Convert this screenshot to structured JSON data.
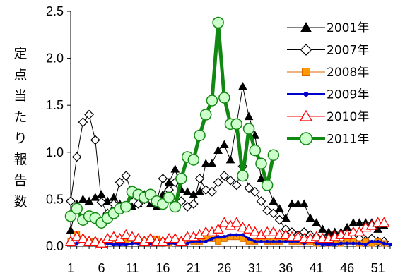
{
  "chart_data": {
    "type": "line",
    "title": "",
    "xlabel": "",
    "ylabel": "定点当たり報告数",
    "xlim": [
      1,
      53
    ],
    "ylim": [
      0,
      2.5
    ],
    "xticks": [
      1,
      6,
      11,
      16,
      21,
      26,
      31,
      36,
      41,
      46,
      51
    ],
    "yticks": [
      0,
      0.5,
      1,
      1.5,
      2,
      2.5
    ],
    "ytick_labels": [
      "0.0",
      "0.5",
      "1.0",
      "1.5",
      "2.0",
      "2.5"
    ],
    "grid": false,
    "legend_position": "top-right",
    "series": [
      {
        "name": "2001年",
        "color": "#000000",
        "marker": "triangle-filled",
        "line_width": 1,
        "values": [
          0.17,
          0.45,
          0.5,
          0.48,
          0.52,
          0.55,
          0.48,
          0.52,
          0.45,
          0.42,
          0.42,
          0.45,
          0.55,
          0.45,
          0.42,
          0.55,
          0.68,
          0.82,
          0.6,
          0.58,
          0.55,
          0.58,
          0.88,
          0.88,
          1.02,
          1.08,
          0.92,
          1.3,
          1.7,
          1.38,
          1.18,
          0.72,
          0.65,
          0.48,
          0.4,
          0.3,
          0.45,
          0.45,
          0.45,
          0.3,
          0.25,
          0.18,
          0.15,
          0.15,
          0.15,
          0.2,
          0.25,
          0.25,
          0.25,
          0.25,
          0.18,
          0.22,
          null
        ]
      },
      {
        "name": "2007年",
        "color": "#000000",
        "marker": "diamond-open",
        "line_width": 1,
        "values": [
          0.48,
          0.95,
          1.32,
          1.4,
          1.13,
          0.47,
          0.35,
          0.45,
          0.68,
          0.75,
          0.55,
          0.45,
          0.5,
          0.5,
          0.48,
          0.72,
          0.6,
          0.68,
          0.48,
          0.42,
          0.45,
          0.72,
          0.6,
          0.58,
          0.68,
          0.75,
          0.7,
          0.65,
          0.85,
          0.62,
          0.58,
          0.48,
          0.38,
          0.35,
          0.28,
          0.18,
          0.15,
          0.12,
          0.15,
          0.12,
          0.1,
          0.08,
          0.08,
          0.1,
          0.08,
          0.06,
          0.08,
          0.08,
          0.06,
          0.08,
          0.05,
          0.05,
          null
        ]
      },
      {
        "name": "2008年",
        "color": "#dd6600",
        "fill": "#ff9900",
        "marker": "square-filled",
        "line_width": 1,
        "values": [
          0.05,
          0.13,
          0.08,
          0.05,
          0.05,
          0.03,
          0.05,
          0.08,
          0.08,
          0.05,
          0.08,
          0.05,
          0.05,
          0.08,
          0.08,
          0.05,
          0.03,
          0.05,
          0.05,
          0.08,
          0.05,
          0.05,
          0.08,
          0.08,
          0.05,
          0.08,
          0.1,
          0.1,
          0.08,
          0.05,
          0.05,
          0.08,
          0.05,
          0.05,
          0.05,
          0.08,
          0.05,
          0.05,
          0.05,
          0.05,
          0.03,
          0.05,
          0.03,
          0.05,
          0.03,
          0.05,
          0.05,
          0.03,
          0.05,
          0.03,
          0.05,
          0.03,
          null
        ]
      },
      {
        "name": "2009年",
        "color": "#0000cc",
        "marker": "dot",
        "line_width": 3,
        "values": [
          0.03,
          0.03,
          0.05,
          0.03,
          0.02,
          0.03,
          0.03,
          0.02,
          0.02,
          0.02,
          0.03,
          0.03,
          0.03,
          0.03,
          0.03,
          0.03,
          0.03,
          0.03,
          0.03,
          0.03,
          0.05,
          0.05,
          0.05,
          0.08,
          0.1,
          0.1,
          0.12,
          0.12,
          0.12,
          0.08,
          0.05,
          0.05,
          0.05,
          0.05,
          0.05,
          0.05,
          0.05,
          0.05,
          0.03,
          0.05,
          0.03,
          0.02,
          0.02,
          0.02,
          0.03,
          0.03,
          0.03,
          0.03,
          0.02,
          0.05,
          0.05,
          0.03,
          0.02
        ]
      },
      {
        "name": "2010年",
        "color": "#ff0000",
        "marker": "triangle-open",
        "line_width": 1,
        "values": [
          0.05,
          0.1,
          0.08,
          0.05,
          0.05,
          0.03,
          0.08,
          0.1,
          0.08,
          0.12,
          0.1,
          0.08,
          0.05,
          0.08,
          0.05,
          0.05,
          0.08,
          0.08,
          0.05,
          0.1,
          0.1,
          0.12,
          0.15,
          0.15,
          0.18,
          0.25,
          0.22,
          0.25,
          0.2,
          0.18,
          0.15,
          0.12,
          0.15,
          0.15,
          0.12,
          0.12,
          0.1,
          0.1,
          0.08,
          0.08,
          0.1,
          0.08,
          0.08,
          0.1,
          0.12,
          0.12,
          0.15,
          0.15,
          0.2,
          0.22,
          0.25,
          0.25,
          null
        ]
      },
      {
        "name": "2011年",
        "color": "#118811",
        "fill": "#ccffcc",
        "marker": "circle-open",
        "line_width": 5,
        "values": [
          0.32,
          0.4,
          0.28,
          0.32,
          0.3,
          0.25,
          0.3,
          0.35,
          0.4,
          0.42,
          0.58,
          0.55,
          0.52,
          0.55,
          0.48,
          0.45,
          0.52,
          0.42,
          0.72,
          0.95,
          0.92,
          1.18,
          1.4,
          1.55,
          2.38,
          1.58,
          1.3,
          1.3,
          0.75,
          1.25,
          1.02,
          0.88,
          0.65,
          0.97,
          null,
          null,
          null,
          null,
          null,
          null,
          null,
          null,
          null,
          null,
          null,
          null,
          null,
          null,
          null,
          null,
          null,
          null,
          null
        ]
      }
    ]
  }
}
